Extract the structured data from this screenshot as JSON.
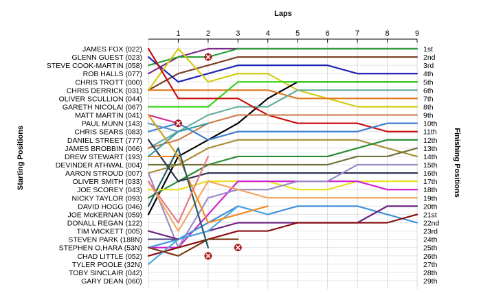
{
  "chart_data": {
    "type": "line",
    "title": "Laps",
    "ylabel_left": "Starting Positions",
    "ylabel_right": "Finishing Positions",
    "x": [
      0,
      1,
      2,
      3,
      4,
      5,
      6,
      7,
      8,
      9
    ],
    "x_tick_labels": [
      "1",
      "2",
      "3",
      "4",
      "5",
      "6",
      "7",
      "8",
      "9"
    ],
    "xlim": [
      0,
      9
    ],
    "ylim": [
      1,
      29
    ],
    "y_inverted": true,
    "grid": true,
    "start_labels": [
      "JAMES FOX (022)",
      "GLENN GUEST (023)",
      "STEVE COOK-MARTIN (058)",
      "ROB HALLS (077)",
      "CHRIS TROTT (000)",
      "CHRIS DERRICK (031)",
      "OLIVER SCULLION (044)",
      "GARETH NICOLAI (067)",
      "MATT MARTIN (041)",
      "PAUL MUNN (143)",
      "CHRIS SEARS (083)",
      "DANIEL STREET (777)",
      "JAMES BROBBIN (066)",
      "DREW STEWART (193)",
      "DEVINDER ATHWAL (004)",
      "AARON STROUD (007)",
      "OLIVER SMITH (033)",
      "JOE SCOREY (043)",
      "NICKY TAYLOR (093)",
      "DAVID HOGG (046)",
      "JOE McKERNAN (059)",
      "DONALL REGAN (122)",
      "TIM WICKETT (005)",
      "STEVEN PARK (188N)",
      "STEPHEN O,HARA (53N)",
      "CHAD LITTLE (052)",
      "TYLER POOLE (32N)",
      "TOBY SINCLAIR (042)",
      "GARY DEAN (060)"
    ],
    "finish_labels": [
      "1st",
      "2nd",
      "3rd",
      "4th",
      "5th",
      "6th",
      "7th",
      "8th",
      "9th",
      "10th",
      "11th",
      "12th",
      "13th",
      "14th",
      "15th",
      "16th",
      "17th",
      "18th",
      "19th",
      "20th",
      "21st",
      "22nd",
      "23rd",
      "24th",
      "25th",
      "26th",
      "27th",
      "28th",
      "29th"
    ],
    "series": [
      {
        "color": "#7d2a8c",
        "positions": [
          4,
          2,
          1,
          1,
          1,
          1,
          1,
          1,
          1,
          1
        ]
      },
      {
        "color": "#7a3f26",
        "positions": [
          6,
          4,
          3,
          2,
          2,
          2,
          2,
          2,
          2,
          2
        ]
      },
      {
        "color": "#2f9e3a",
        "positions": [
          3,
          2,
          2,
          1,
          1,
          1,
          1,
          1,
          1,
          1
        ]
      },
      {
        "color": "#1e22b4",
        "positions": [
          2,
          5,
          4,
          3,
          3,
          3,
          3,
          4,
          4,
          4
        ]
      },
      {
        "color": "#d4cc10",
        "positions": [
          6,
          1,
          5,
          4,
          4,
          6,
          7,
          8,
          8,
          8
        ]
      },
      {
        "color": "#000000",
        "positions": [
          21,
          14,
          12,
          10,
          7,
          5,
          5,
          5,
          5,
          5
        ]
      },
      {
        "color": "#e07a1e",
        "positions": [
          6,
          6,
          6,
          6,
          6,
          7,
          7,
          7,
          7,
          7
        ]
      },
      {
        "color": "#6aaea0",
        "positions": [
          13,
          11,
          9,
          8,
          8,
          6,
          6,
          6,
          6,
          6
        ]
      },
      {
        "color": "#36d417",
        "positions": [
          8,
          8,
          8,
          5,
          5,
          5,
          5,
          5,
          5,
          5
        ]
      },
      {
        "color": "#c81010",
        "positions": [
          1,
          7,
          7,
          7,
          9,
          10,
          10,
          10,
          11,
          11
        ]
      },
      {
        "color": "#cc8050",
        "positions": [
          13,
          12,
          10,
          9,
          9,
          9,
          9,
          9,
          9,
          9
        ]
      },
      {
        "color": "#3f7fd0",
        "positions": [
          11,
          10,
          12,
          11,
          11,
          11,
          11,
          11,
          10,
          10
        ]
      },
      {
        "color": "#a8903a",
        "positions": [
          16,
          15,
          13,
          12,
          12,
          12,
          12,
          12,
          13,
          14
        ]
      },
      {
        "color": "#2a8c30",
        "positions": [
          19,
          17,
          15,
          14,
          14,
          14,
          14,
          13,
          12,
          12
        ]
      },
      {
        "color": "#707038",
        "positions": [
          15,
          15,
          15,
          15,
          15,
          15,
          15,
          14,
          14,
          13
        ]
      },
      {
        "color": "#2a3050",
        "positions": [
          12,
          17,
          16,
          16,
          16,
          16,
          16,
          16,
          16,
          16
        ]
      },
      {
        "color": "#e8e020",
        "positions": [
          18,
          18,
          17,
          17,
          17,
          18,
          18,
          17,
          17,
          17
        ]
      },
      {
        "color": "#d020d0",
        "positions": [
          25,
          25,
          21,
          17,
          17,
          17,
          17,
          17,
          18,
          18
        ]
      },
      {
        "color": "#9b8ac8",
        "positions": [
          16,
          25,
          19,
          18,
          18,
          17,
          17,
          15,
          15,
          15
        ]
      },
      {
        "color": "#f0a860",
        "positions": [
          17,
          23,
          17,
          18,
          19,
          19,
          19,
          19,
          19,
          19
        ]
      },
      {
        "color": "#3f90d8",
        "positions": [
          25,
          24,
          22,
          20,
          21,
          20,
          20,
          20,
          21,
          22
        ]
      },
      {
        "color": "#6a2080",
        "positions": [
          23,
          24,
          23,
          22,
          22,
          22,
          22,
          22,
          20,
          20
        ]
      },
      {
        "color": "#8a0c10",
        "positions": [
          26,
          25,
          24,
          23,
          23,
          22,
          22,
          22,
          22,
          21
        ]
      },
      {
        "color": "#4da8e0",
        "positions": [
          27,
          24,
          23,
          20,
          21
        ]
      },
      {
        "color": "#f08a20",
        "positions": [
          14,
          14,
          22,
          21,
          20
        ]
      },
      {
        "color": "#7a3a14",
        "positions": [
          25,
          26,
          24,
          24
        ]
      },
      {
        "color": "#205a66",
        "positions": [
          20,
          13,
          25
        ]
      },
      {
        "color": "#e87a80",
        "positions": [
          17,
          22,
          14
        ]
      },
      {
        "color": "#2f9ea0",
        "positions": [
          14,
          11,
          10
        ]
      },
      {
        "color": "#c83090",
        "positions": [
          9,
          10
        ]
      },
      {
        "color": "#6098c8",
        "positions": [
          10,
          11
        ]
      },
      {
        "color": "#d6a020",
        "positions": [
          9,
          14
        ]
      },
      {
        "color": "#505088",
        "positions": [
          24,
          24
        ]
      }
    ],
    "retirements": [
      {
        "lap": 2,
        "position": 2
      },
      {
        "lap": 1,
        "position": 10
      },
      {
        "lap": 3,
        "position": 25
      },
      {
        "lap": 2,
        "position": 26
      }
    ]
  }
}
